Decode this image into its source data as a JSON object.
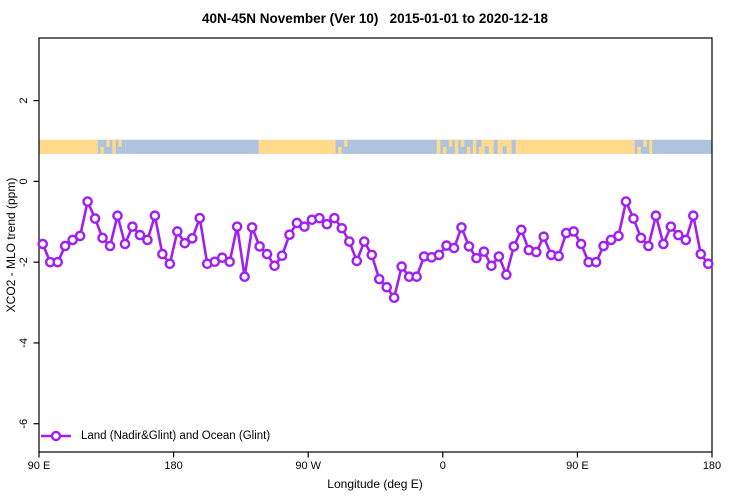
{
  "title": "40N-45N November (Ver 10)   2015-01-01 to 2020-12-18",
  "chart_data": {
    "type": "line",
    "title": "40N-45N November (Ver 10)   2015-01-01 to 2020-12-18",
    "xlabel": "Longitude (deg E)",
    "ylabel": "XCO2 - MLO trend (ppm)",
    "grid": false,
    "x_axis": {
      "range_deg": [
        90,
        540
      ],
      "ticks_deg": [
        90,
        180,
        270,
        360,
        450,
        540
      ],
      "tick_labels": [
        "90 E",
        "180",
        "90 W",
        "0",
        "90 E",
        "180"
      ]
    },
    "y_axis": {
      "range": [
        -6.7,
        3.55
      ],
      "ticks": [
        2,
        0,
        -2,
        -4,
        -6
      ],
      "tick_labels": [
        "2",
        "0",
        "-2",
        "-4",
        "-6"
      ]
    },
    "legend": {
      "position": "bottom-left",
      "entries": [
        {
          "label": "Land (Nadir&Glint) and Ocean (Glint)",
          "color": "#A020F0",
          "marker": "open-circle"
        }
      ]
    },
    "series": [
      {
        "name": "Land (Nadir&Glint) and Ocean (Glint)",
        "color": "#A020F0",
        "marker_fill": "#ffffff",
        "x_deg": [
          92.5,
          97.5,
          102.5,
          107.5,
          112.5,
          117.5,
          122.5,
          127.5,
          132.5,
          137.5,
          142.5,
          147.5,
          152.5,
          157.5,
          162.5,
          167.5,
          172.5,
          177.5,
          182.5,
          187.5,
          192.5,
          197.5,
          202.5,
          207.5,
          212.5,
          217.5,
          222.5,
          227.5,
          232.5,
          237.5,
          242.5,
          247.5,
          252.5,
          257.5,
          262.5,
          267.5,
          272.5,
          277.5,
          282.5,
          287.5,
          292.5,
          297.5,
          302.5,
          307.5,
          312.5,
          317.5,
          322.5,
          327.5,
          332.5,
          337.5,
          342.5,
          347.5,
          352.5,
          357.5,
          362.5,
          367.5,
          372.5,
          377.5,
          382.5,
          387.5,
          392.5,
          397.5,
          402.5,
          407.5,
          412.5,
          417.5,
          422.5,
          427.5,
          432.5,
          437.5,
          442.5,
          447.5,
          452.5,
          457.5,
          462.5,
          467.5,
          472.5,
          477.5,
          482.5,
          487.5,
          492.5,
          497.5,
          502.5,
          507.5,
          512.5,
          517.5,
          522.5,
          527.5,
          532.5,
          537.5
        ],
        "values": [
          -1.55,
          -2.0,
          -2.0,
          -1.6,
          -1.45,
          -1.35,
          -0.5,
          -0.92,
          -1.4,
          -1.6,
          -0.85,
          -1.55,
          -1.12,
          -1.33,
          -1.45,
          -0.85,
          -1.8,
          -2.04,
          -1.24,
          -1.53,
          -1.41,
          -0.91,
          -2.04,
          -1.99,
          -1.89,
          -1.99,
          -1.12,
          -2.36,
          -1.14,
          -1.61,
          -1.8,
          -2.09,
          -1.84,
          -1.32,
          -1.03,
          -1.12,
          -0.95,
          -0.91,
          -1.06,
          -0.91,
          -1.16,
          -1.49,
          -1.97,
          -1.49,
          -1.82,
          -2.42,
          -2.62,
          -2.88,
          -2.11,
          -2.36,
          -2.36,
          -1.86,
          -1.88,
          -1.82,
          -1.59,
          -1.65,
          -1.14,
          -1.61,
          -1.9,
          -1.74,
          -2.09,
          -1.86,
          -2.31,
          -1.61,
          -1.2,
          -1.7,
          -1.75,
          -1.37,
          -1.82,
          -1.85,
          -1.28,
          -1.24,
          -1.55,
          -2.0,
          -2.0,
          -1.6,
          -1.45,
          -1.35,
          -0.5,
          -0.92,
          -1.4,
          -1.6,
          -0.85,
          -1.55,
          -1.12,
          -1.33,
          -1.45,
          -0.85,
          -1.8,
          -2.04
        ]
      }
    ],
    "land_ocean_strip": {
      "y_range_ppm": [
        0.68,
        1.03
      ],
      "land_color": "#FFD98C",
      "ocean_color": "#AEC3DD",
      "segments": [
        {
          "from_deg": 90,
          "to_deg": 127,
          "surface": "land"
        },
        {
          "from_deg": 127,
          "to_deg": 148,
          "surface": "coast"
        },
        {
          "from_deg": 148,
          "to_deg": 237,
          "surface": "ocean"
        },
        {
          "from_deg": 237,
          "to_deg": 286,
          "surface": "land"
        },
        {
          "from_deg": 286,
          "to_deg": 298,
          "surface": "coast"
        },
        {
          "from_deg": 298,
          "to_deg": 356,
          "surface": "ocean"
        },
        {
          "from_deg": 356,
          "to_deg": 386,
          "surface": "coast"
        },
        {
          "from_deg": 386,
          "to_deg": 412,
          "surface": "coast-land"
        },
        {
          "from_deg": 412,
          "to_deg": 486,
          "surface": "land"
        },
        {
          "from_deg": 486,
          "to_deg": 500,
          "surface": "coast"
        },
        {
          "from_deg": 500,
          "to_deg": 540,
          "surface": "ocean"
        }
      ]
    }
  },
  "colors": {
    "series_purple": "#A020F0",
    "axis_black": "#000000",
    "strip_land": "#FFD98C",
    "strip_ocean": "#AEC3DD",
    "background": "#ffffff"
  }
}
